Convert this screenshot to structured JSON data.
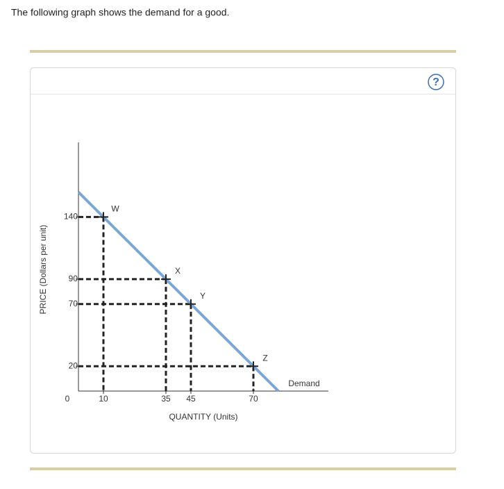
{
  "header": {
    "text": "The following graph shows the demand for a good.",
    "help_icon": "?"
  },
  "chart_data": {
    "type": "line",
    "x_label": "QUANTITY (Units)",
    "y_label": "PRICE (Dollars per unit)",
    "xlim": [
      0,
      100
    ],
    "ylim": [
      0,
      200
    ],
    "xticks": [
      0,
      10,
      35,
      45,
      70
    ],
    "yticks": [
      20,
      70,
      90,
      140
    ],
    "series": [
      {
        "name": "Demand",
        "color": "#7ba7d4",
        "x": [
          0,
          80
        ],
        "values": [
          160,
          0
        ]
      }
    ],
    "points": [
      {
        "label": "W",
        "x": 10,
        "y": 140
      },
      {
        "label": "X",
        "x": 35,
        "y": 90
      },
      {
        "label": "Y",
        "x": 45,
        "y": 70
      },
      {
        "label": "Z",
        "x": 70,
        "y": 20
      }
    ]
  }
}
